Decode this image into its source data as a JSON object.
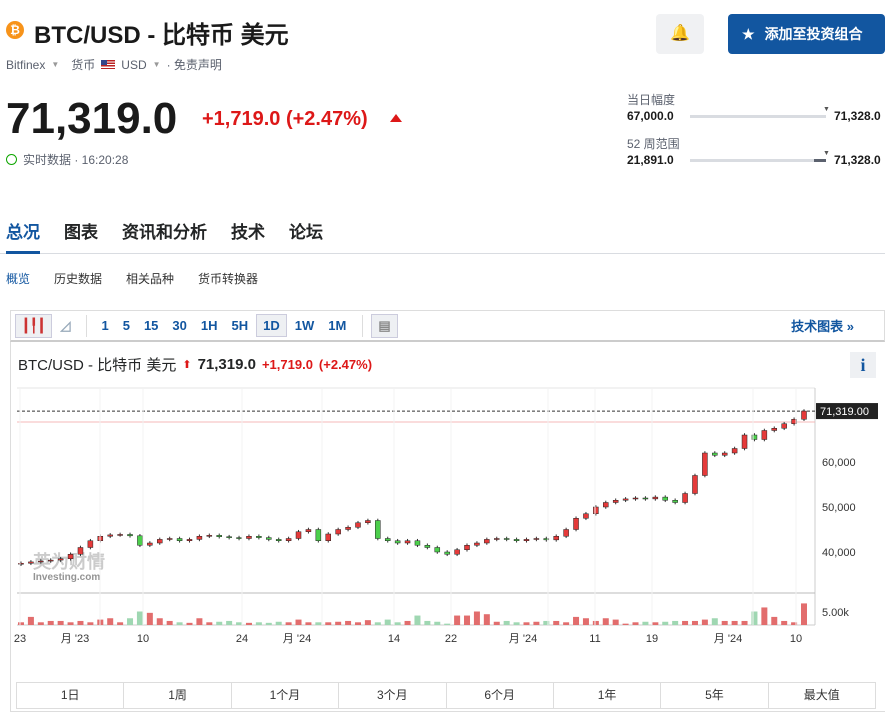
{
  "header": {
    "title": "BTC/USD - 比特币 美元",
    "exchange": "Bitfinex",
    "currency_label": "货币",
    "currency": "USD",
    "disclaimer": "· 免责声明",
    "add_portfolio": "添加至投资组合"
  },
  "quote": {
    "price": "71,319.0",
    "change": "+1,719.0 (+2.47%)",
    "realtime": "实时数据 · 16:20:28"
  },
  "ranges": {
    "day_label": "当日幅度",
    "day_low": "67,000.0",
    "day_high": "71,328.0",
    "day_pos": 0.998,
    "week52_label": "52 周范围",
    "week52_low": "21,891.0",
    "week52_high": "71,328.0",
    "week52_pos": 0.998
  },
  "tabs": [
    "总况",
    "图表",
    "资讯和分析",
    "技术",
    "论坛"
  ],
  "subtabs": [
    "概览",
    "历史数据",
    "相关品种",
    "货币转换器"
  ],
  "toolbar": {
    "intervals": [
      "1",
      "5",
      "15",
      "30",
      "1H",
      "5H",
      "1D",
      "1W",
      "1M"
    ],
    "selected": "1D",
    "tech_chart": "技术图表 »"
  },
  "chart_header": {
    "name": "BTC/USD - 比特币 美元",
    "price": "71,319.0",
    "change": "+1,719.0",
    "pct": "(+2.47%)"
  },
  "periods": [
    "1日",
    "1周",
    "1个月",
    "3个月",
    "6个月",
    "1年",
    "5年",
    "最大值"
  ],
  "watermark": "英为财情 Investing.com",
  "chart_data": {
    "type": "candlestick",
    "last_price_label": "71,319.00",
    "y_ticks": [
      "40,000",
      "50,000",
      "60,000"
    ],
    "y_tick_values": [
      40000,
      50000,
      60000
    ],
    "volume_tick": "5.00k",
    "x_labels": [
      "23",
      "月 '23",
      "10",
      "24",
      "月 '24",
      "14",
      "22",
      "月 '24",
      "11",
      "19",
      "月 '24",
      "10"
    ],
    "closes": [
      37.5,
      37.8,
      38.0,
      38.2,
      38.5,
      39.5,
      41,
      42.5,
      43.5,
      43.8,
      43.9,
      43.6,
      41.5,
      42,
      42.8,
      43,
      42.5,
      42.8,
      43.5,
      43.7,
      43.4,
      43.2,
      43,
      43.5,
      43.2,
      42.8,
      42.5,
      43,
      44.5,
      45,
      42.5,
      44,
      45,
      45.5,
      46.5,
      47,
      43,
      42.5,
      42,
      42.5,
      41.5,
      41,
      40,
      39.5,
      40.5,
      41.5,
      42,
      42.8,
      43,
      42.8,
      42.5,
      42.8,
      43,
      42.7,
      43.5,
      45,
      47.5,
      48.5,
      50,
      51,
      51.5,
      51.8,
      52,
      51.8,
      52.2,
      51.5,
      51,
      53,
      57,
      62,
      61.5,
      62,
      63,
      66,
      65,
      67,
      67.5,
      68.5,
      69.5,
      71.319
    ],
    "volumes_k": [
      1,
      3,
      1,
      1.5,
      1.5,
      1,
      1.5,
      1,
      2,
      2.5,
      1,
      2.5,
      5,
      4.5,
      2.5,
      1.5,
      1,
      0.8,
      2.5,
      1,
      1.2,
      1.5,
      1,
      0.8,
      1,
      0.8,
      1.2,
      1,
      2,
      1,
      1,
      1,
      1.2,
      1.5,
      1,
      1.8,
      1,
      2,
      1,
      1.5,
      3.5,
      1.5,
      1.2,
      0.5,
      3.5,
      3.5,
      5,
      4,
      1.2,
      1.5,
      1,
      1,
      1.2,
      1.5,
      1.5,
      1,
      3,
      2.5,
      1.5,
      2.5,
      2,
      0.5,
      1,
      1.2,
      1,
      1.2,
      1.5,
      1.5,
      1.5,
      2,
      2.5,
      1.5,
      1.5,
      1.5,
      5,
      6.5,
      3,
      1.5,
      1,
      8
    ],
    "price_unit": "thousand USD"
  }
}
